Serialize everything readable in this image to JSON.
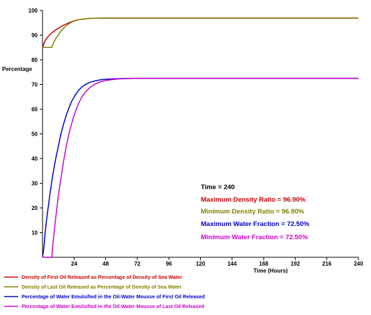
{
  "chart_data": {
    "type": "line",
    "ylabel": "Percentage",
    "xlabel": "Time (Hours)",
    "xlim": [
      0,
      240
    ],
    "ylim": [
      0,
      100
    ],
    "x_ticks": [
      24,
      48,
      72,
      96,
      120,
      144,
      168,
      192,
      216,
      240
    ],
    "y_ticks": [
      10,
      20,
      30,
      40,
      50,
      60,
      70,
      80,
      90,
      100
    ],
    "grid": false,
    "legend_position": "bottom-left",
    "series": [
      {
        "name": "Density of First Oil Released as Percentage of Density of Sea Water",
        "color": "#cc0000",
        "x": [
          0,
          1,
          2,
          4,
          6,
          8,
          10,
          12,
          14,
          16,
          18,
          20,
          22,
          24,
          28,
          32,
          36,
          40,
          48,
          60,
          72,
          96,
          120,
          144,
          168,
          192,
          216,
          240
        ],
        "y": [
          85,
          86.5,
          87.8,
          89.3,
          90.4,
          91.3,
          92.1,
          92.8,
          93.4,
          94.0,
          94.5,
          95.0,
          95.4,
          95.8,
          96.3,
          96.6,
          96.8,
          96.85,
          96.9,
          96.9,
          96.9,
          96.9,
          96.9,
          96.9,
          96.9,
          96.9,
          96.9,
          96.9
        ]
      },
      {
        "name": "Density of Last Oil Released as Percentage of Density of Sea Water",
        "color": "#808000",
        "x": [
          0,
          2,
          4,
          6,
          7,
          8,
          10,
          12,
          14,
          16,
          18,
          20,
          22,
          24,
          28,
          32,
          36,
          40,
          48,
          60,
          72,
          96,
          120,
          144,
          168,
          192,
          216,
          240
        ],
        "y": [
          85,
          85,
          85,
          85,
          85,
          86.5,
          88.5,
          90.2,
          91.6,
          92.8,
          93.8,
          94.6,
          95.2,
          95.7,
          96.3,
          96.6,
          96.8,
          96.85,
          96.9,
          96.9,
          96.9,
          96.9,
          96.9,
          96.9,
          96.9,
          96.9,
          96.9,
          96.9
        ]
      },
      {
        "name": "Percentage of Water Emulsified in the Oil-Water Mousse of First Oil Released",
        "color": "#0000cc",
        "x": [
          0,
          1,
          2,
          3,
          4,
          6,
          8,
          10,
          12,
          14,
          16,
          18,
          20,
          22,
          24,
          26,
          28,
          30,
          32,
          36,
          40,
          44,
          48,
          56,
          64,
          72,
          96,
          120,
          144,
          168,
          192,
          216,
          240
        ],
        "y": [
          0,
          4,
          10,
          15,
          19,
          27,
          34,
          40,
          45,
          50,
          54,
          57.5,
          60.5,
          63,
          65,
          66.6,
          68,
          69,
          69.8,
          70.9,
          71.5,
          71.9,
          72.1,
          72.35,
          72.45,
          72.5,
          72.5,
          72.5,
          72.5,
          72.5,
          72.5,
          72.5,
          72.5
        ]
      },
      {
        "name": "Percentage of Water Emulsified in the Oil-Water Mousse of Last Oil Released",
        "color": "#cc00cc",
        "x": [
          0,
          3,
          6,
          7,
          8,
          10,
          12,
          14,
          16,
          18,
          20,
          22,
          24,
          26,
          28,
          30,
          32,
          36,
          40,
          44,
          48,
          56,
          64,
          72,
          96,
          120,
          144,
          168,
          192,
          216,
          240
        ],
        "y": [
          0,
          0,
          0,
          0,
          6,
          16,
          25,
          32,
          39,
          45,
          50,
          54,
          57.5,
          60.5,
          63,
          65,
          66.6,
          68.8,
          70.2,
          71.1,
          71.6,
          72.2,
          72.4,
          72.5,
          72.5,
          72.5,
          72.5,
          72.5,
          72.5,
          72.5,
          72.5
        ]
      }
    ],
    "annotations": [
      {
        "text": "Time = 240",
        "color": "#000000"
      },
      {
        "text": "Maximum Density Ratio = 96.90%",
        "color": "#cc0000"
      },
      {
        "text": "Minimum Density Ratio = 96.90%",
        "color": "#808000"
      },
      {
        "text": "Maximum Water Fraction = 72.50%",
        "color": "#0000cc"
      },
      {
        "text": "Minimum Water Fraction = 72.50%",
        "color": "#cc00cc"
      }
    ]
  }
}
